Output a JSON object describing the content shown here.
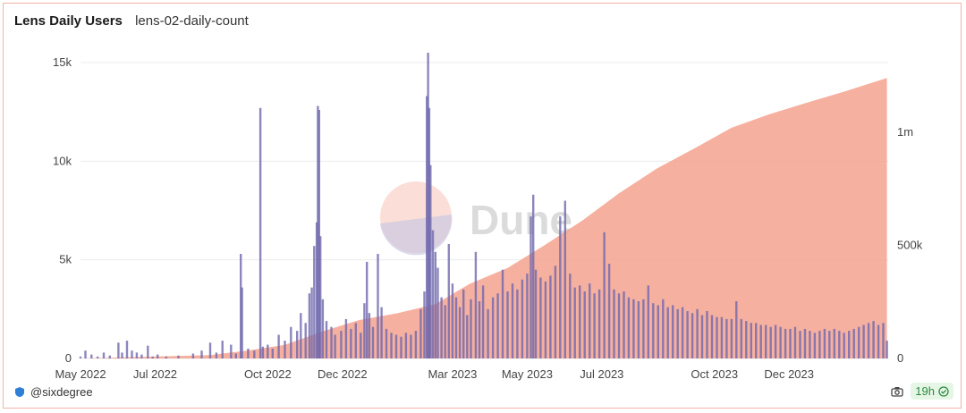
{
  "header": {
    "title": "Lens Daily Users",
    "subtitle": "lens-02-daily-count"
  },
  "footer": {
    "author": "@sixdegree",
    "freshness": "19h",
    "icons": [
      "shield-icon",
      "camera-icon",
      "check-circle-icon"
    ]
  },
  "watermark": {
    "text": "Dune"
  },
  "colors": {
    "bars": "#6f68ad",
    "area": "#f4a28e",
    "bars_overlay": "#b06a7c",
    "border": "#f2b3a6"
  },
  "chart_data": {
    "type": "bar+area",
    "x_ticks": [
      "May 2022",
      "Jul 2022",
      "Oct 2022",
      "Dec 2022",
      "Mar 2023",
      "May 2023",
      "Jul 2023",
      "Oct 2023",
      "Dec 2023"
    ],
    "x_tick_dates": [
      "2022-05-01",
      "2022-07-01",
      "2022-10-01",
      "2022-12-01",
      "2023-03-01",
      "2023-05-01",
      "2023-07-01",
      "2023-10-01",
      "2023-12-01"
    ],
    "x_range": [
      "2022-05-01",
      "2024-02-20"
    ],
    "y_left": {
      "ticks": [
        "0",
        "5k",
        "10k",
        "15k"
      ],
      "tick_values": [
        0,
        5000,
        10000,
        15000
      ],
      "range": [
        0,
        15000
      ]
    },
    "y_right": {
      "ticks": [
        "0",
        "500k",
        "1m"
      ],
      "tick_values": [
        0,
        500000,
        1000000
      ],
      "range": [
        0,
        1000000
      ]
    },
    "series": [
      {
        "kind": "bar",
        "axis": "left",
        "points": [
          [
            "2022-05-01",
            100
          ],
          [
            "2022-05-05",
            400
          ],
          [
            "2022-05-10",
            200
          ],
          [
            "2022-05-15",
            100
          ],
          [
            "2022-05-20",
            300
          ],
          [
            "2022-05-25",
            150
          ],
          [
            "2022-06-01",
            800
          ],
          [
            "2022-06-04",
            300
          ],
          [
            "2022-06-08",
            900
          ],
          [
            "2022-06-12",
            400
          ],
          [
            "2022-06-16",
            300
          ],
          [
            "2022-06-20",
            200
          ],
          [
            "2022-06-25",
            650
          ],
          [
            "2022-06-29",
            100
          ],
          [
            "2022-07-03",
            200
          ],
          [
            "2022-07-10",
            100
          ],
          [
            "2022-07-20",
            150
          ],
          [
            "2022-08-01",
            250
          ],
          [
            "2022-08-08",
            400
          ],
          [
            "2022-08-15",
            800
          ],
          [
            "2022-08-20",
            300
          ],
          [
            "2022-08-25",
            900
          ],
          [
            "2022-09-01",
            700
          ],
          [
            "2022-09-05",
            250
          ],
          [
            "2022-09-09",
            5300
          ],
          [
            "2022-09-10",
            3600
          ],
          [
            "2022-09-15",
            500
          ],
          [
            "2022-09-20",
            400
          ],
          [
            "2022-09-25",
            12700
          ],
          [
            "2022-09-27",
            600
          ],
          [
            "2022-10-01",
            700
          ],
          [
            "2022-10-05",
            500
          ],
          [
            "2022-10-10",
            1200
          ],
          [
            "2022-10-15",
            900
          ],
          [
            "2022-10-20",
            1600
          ],
          [
            "2022-10-25",
            1400
          ],
          [
            "2022-10-28",
            2300
          ],
          [
            "2022-11-01",
            1800
          ],
          [
            "2022-11-04",
            3300
          ],
          [
            "2022-11-06",
            3600
          ],
          [
            "2022-11-08",
            5700
          ],
          [
            "2022-11-10",
            6900
          ],
          [
            "2022-11-11",
            12800
          ],
          [
            "2022-11-12",
            12600
          ],
          [
            "2022-11-13",
            6200
          ],
          [
            "2022-11-15",
            3000
          ],
          [
            "2022-11-18",
            1900
          ],
          [
            "2022-11-22",
            1600
          ],
          [
            "2022-11-25",
            1200
          ],
          [
            "2022-11-30",
            1400
          ],
          [
            "2022-12-04",
            2000
          ],
          [
            "2022-12-08",
            1500
          ],
          [
            "2022-12-12",
            1800
          ],
          [
            "2022-12-16",
            1300
          ],
          [
            "2022-12-19",
            2800
          ],
          [
            "2022-12-21",
            4900
          ],
          [
            "2022-12-23",
            2300
          ],
          [
            "2022-12-26",
            1600
          ],
          [
            "2022-12-30",
            5300
          ],
          [
            "2023-01-02",
            2600
          ],
          [
            "2023-01-06",
            1500
          ],
          [
            "2023-01-10",
            1300
          ],
          [
            "2023-01-14",
            1200
          ],
          [
            "2023-01-18",
            1100
          ],
          [
            "2023-01-22",
            1300
          ],
          [
            "2023-01-26",
            1200
          ],
          [
            "2023-01-30",
            1400
          ],
          [
            "2023-02-03",
            2500
          ],
          [
            "2023-02-06",
            3400
          ],
          [
            "2023-02-08",
            13300
          ],
          [
            "2023-02-09",
            15500
          ],
          [
            "2023-02-10",
            12700
          ],
          [
            "2023-02-11",
            9800
          ],
          [
            "2023-02-13",
            6500
          ],
          [
            "2023-02-15",
            5400
          ],
          [
            "2023-02-17",
            4600
          ],
          [
            "2023-02-20",
            3100
          ],
          [
            "2023-02-23",
            2700
          ],
          [
            "2023-02-26",
            5800
          ],
          [
            "2023-03-01",
            3800
          ],
          [
            "2023-03-04",
            3100
          ],
          [
            "2023-03-07",
            2600
          ],
          [
            "2023-03-10",
            3500
          ],
          [
            "2023-03-13",
            2200
          ],
          [
            "2023-03-16",
            3000
          ],
          [
            "2023-03-20",
            5400
          ],
          [
            "2023-03-23",
            2900
          ],
          [
            "2023-03-26",
            3700
          ],
          [
            "2023-03-30",
            2500
          ],
          [
            "2023-04-03",
            3100
          ],
          [
            "2023-04-07",
            3300
          ],
          [
            "2023-04-11",
            4500
          ],
          [
            "2023-04-15",
            3400
          ],
          [
            "2023-04-19",
            3800
          ],
          [
            "2023-04-23",
            3500
          ],
          [
            "2023-04-27",
            4000
          ],
          [
            "2023-05-01",
            4300
          ],
          [
            "2023-05-04",
            7200
          ],
          [
            "2023-05-06",
            8300
          ],
          [
            "2023-05-08",
            4500
          ],
          [
            "2023-05-12",
            4100
          ],
          [
            "2023-05-16",
            3900
          ],
          [
            "2023-05-20",
            4200
          ],
          [
            "2023-05-24",
            4700
          ],
          [
            "2023-05-28",
            7200
          ],
          [
            "2023-06-01",
            8000
          ],
          [
            "2023-06-05",
            4300
          ],
          [
            "2023-06-09",
            3600
          ],
          [
            "2023-06-13",
            3700
          ],
          [
            "2023-06-17",
            3400
          ],
          [
            "2023-06-21",
            3800
          ],
          [
            "2023-06-25",
            3300
          ],
          [
            "2023-06-29",
            3500
          ],
          [
            "2023-07-03",
            6400
          ],
          [
            "2023-07-07",
            4800
          ],
          [
            "2023-07-11",
            3500
          ],
          [
            "2023-07-15",
            3300
          ],
          [
            "2023-07-19",
            3400
          ],
          [
            "2023-07-23",
            3100
          ],
          [
            "2023-07-27",
            3000
          ],
          [
            "2023-07-31",
            2900
          ],
          [
            "2023-08-04",
            3000
          ],
          [
            "2023-08-08",
            3700
          ],
          [
            "2023-08-12",
            2800
          ],
          [
            "2023-08-16",
            2700
          ],
          [
            "2023-08-20",
            3000
          ],
          [
            "2023-08-24",
            2600
          ],
          [
            "2023-08-28",
            2700
          ],
          [
            "2023-09-01",
            2500
          ],
          [
            "2023-09-05",
            2600
          ],
          [
            "2023-09-09",
            2400
          ],
          [
            "2023-09-13",
            2300
          ],
          [
            "2023-09-17",
            2500
          ],
          [
            "2023-09-21",
            2200
          ],
          [
            "2023-09-25",
            2400
          ],
          [
            "2023-09-29",
            2200
          ],
          [
            "2023-10-03",
            2100
          ],
          [
            "2023-10-07",
            2100
          ],
          [
            "2023-10-11",
            2000
          ],
          [
            "2023-10-15",
            2000
          ],
          [
            "2023-10-19",
            2900
          ],
          [
            "2023-10-23",
            2000
          ],
          [
            "2023-10-27",
            1900
          ],
          [
            "2023-10-31",
            1800
          ],
          [
            "2023-11-04",
            1800
          ],
          [
            "2023-11-08",
            1700
          ],
          [
            "2023-11-12",
            1700
          ],
          [
            "2023-11-16",
            1600
          ],
          [
            "2023-11-20",
            1700
          ],
          [
            "2023-11-24",
            1600
          ],
          [
            "2023-11-28",
            1500
          ],
          [
            "2023-12-02",
            1500
          ],
          [
            "2023-12-06",
            1600
          ],
          [
            "2023-12-10",
            1400
          ],
          [
            "2023-12-14",
            1500
          ],
          [
            "2023-12-18",
            1400
          ],
          [
            "2023-12-22",
            1300
          ],
          [
            "2023-12-26",
            1400
          ],
          [
            "2023-12-30",
            1500
          ],
          [
            "2024-01-03",
            1400
          ],
          [
            "2024-01-07",
            1500
          ],
          [
            "2024-01-11",
            1400
          ],
          [
            "2024-01-15",
            1300
          ],
          [
            "2024-01-19",
            1400
          ],
          [
            "2024-01-23",
            1500
          ],
          [
            "2024-01-27",
            1600
          ],
          [
            "2024-01-31",
            1700
          ],
          [
            "2024-02-04",
            1800
          ],
          [
            "2024-02-08",
            1900
          ],
          [
            "2024-02-12",
            1700
          ],
          [
            "2024-02-16",
            1800
          ],
          [
            "2024-02-19",
            900
          ]
        ]
      },
      {
        "kind": "area",
        "axis": "right",
        "points": [
          [
            "2022-05-01",
            0
          ],
          [
            "2022-08-15",
            15000
          ],
          [
            "2022-09-15",
            35000
          ],
          [
            "2022-10-15",
            60000
          ],
          [
            "2022-11-15",
            120000
          ],
          [
            "2022-12-15",
            170000
          ],
          [
            "2023-01-15",
            200000
          ],
          [
            "2023-02-15",
            240000
          ],
          [
            "2023-03-15",
            330000
          ],
          [
            "2023-04-15",
            400000
          ],
          [
            "2023-05-15",
            500000
          ],
          [
            "2023-06-15",
            610000
          ],
          [
            "2023-07-15",
            730000
          ],
          [
            "2023-08-15",
            840000
          ],
          [
            "2023-09-15",
            930000
          ],
          [
            "2023-10-15",
            1020000
          ],
          [
            "2023-11-15",
            1080000
          ],
          [
            "2023-12-15",
            1130000
          ],
          [
            "2024-01-15",
            1180000
          ],
          [
            "2024-02-19",
            1240000
          ]
        ]
      }
    ]
  }
}
